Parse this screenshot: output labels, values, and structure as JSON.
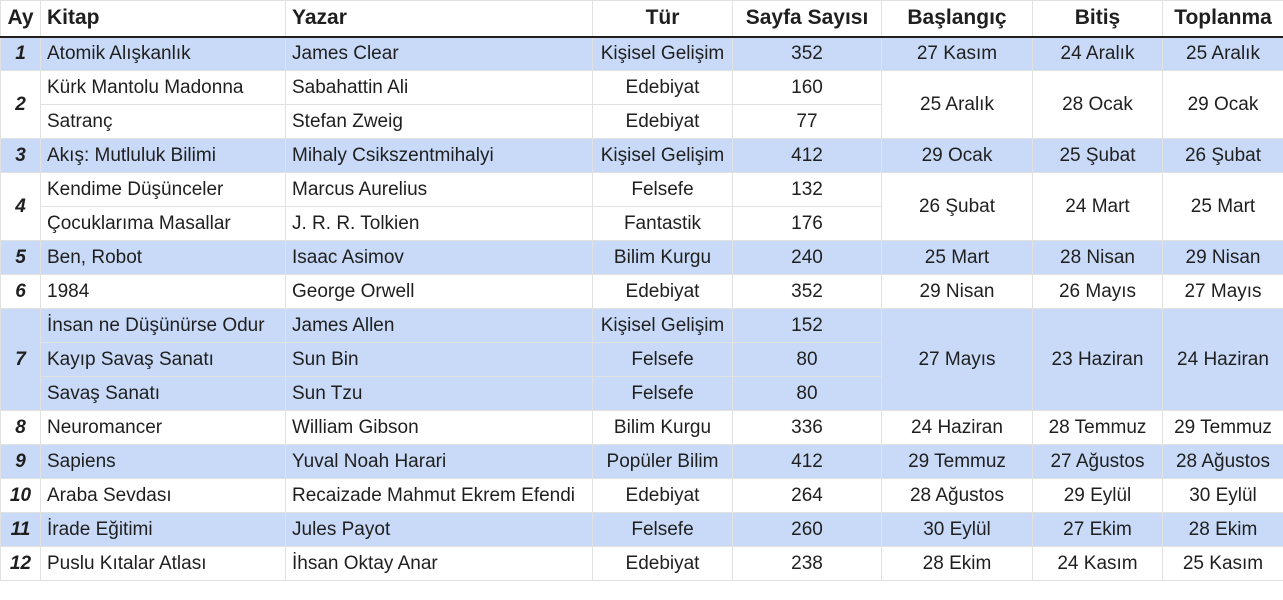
{
  "headers": {
    "ay": "Ay",
    "kitap": "Kitap",
    "yazar": "Yazar",
    "tur": "Tür",
    "sayfa": "Sayfa Sayısı",
    "baslangic": "Başlangıç",
    "bitis": "Bitiş",
    "toplanma": "Toplanma"
  },
  "months": [
    {
      "ay": "1",
      "baslangic": "27 Kasım",
      "bitis": "24 Aralık",
      "toplanma": "25 Aralık",
      "books": [
        {
          "kitap": "Atomik Alışkanlık",
          "yazar": "James Clear",
          "tur": "Kişisel Gelişim",
          "sayfa": "352"
        }
      ]
    },
    {
      "ay": "2",
      "baslangic": "25 Aralık",
      "bitis": "28 Ocak",
      "toplanma": "29 Ocak",
      "books": [
        {
          "kitap": "Kürk Mantolu Madonna",
          "yazar": "Sabahattin Ali",
          "tur": "Edebiyat",
          "sayfa": "160"
        },
        {
          "kitap": "Satranç",
          "yazar": "Stefan Zweig",
          "tur": "Edebiyat",
          "sayfa": "77"
        }
      ]
    },
    {
      "ay": "3",
      "baslangic": "29 Ocak",
      "bitis": "25 Şubat",
      "toplanma": "26 Şubat",
      "books": [
        {
          "kitap": "Akış: Mutluluk Bilimi",
          "yazar": "Mihaly Csikszentmihalyi",
          "tur": "Kişisel Gelişim",
          "sayfa": "412"
        }
      ]
    },
    {
      "ay": "4",
      "baslangic": "26 Şubat",
      "bitis": "24 Mart",
      "toplanma": "25 Mart",
      "books": [
        {
          "kitap": "Kendime Düşünceler",
          "yazar": "Marcus Aurelius",
          "tur": "Felsefe",
          "sayfa": "132"
        },
        {
          "kitap": "Çocuklarıma Masallar",
          "yazar": "J. R. R. Tolkien",
          "tur": "Fantastik",
          "sayfa": "176"
        }
      ]
    },
    {
      "ay": "5",
      "baslangic": "25 Mart",
      "bitis": "28 Nisan",
      "toplanma": "29 Nisan",
      "books": [
        {
          "kitap": "Ben, Robot",
          "yazar": "Isaac Asimov",
          "tur": "Bilim Kurgu",
          "sayfa": "240"
        }
      ]
    },
    {
      "ay": "6",
      "baslangic": "29 Nisan",
      "bitis": "26 Mayıs",
      "toplanma": "27 Mayıs",
      "books": [
        {
          "kitap": "1984",
          "yazar": "George Orwell",
          "tur": "Edebiyat",
          "sayfa": "352"
        }
      ]
    },
    {
      "ay": "7",
      "baslangic": "27 Mayıs",
      "bitis": "23 Haziran",
      "toplanma": "24 Haziran",
      "books": [
        {
          "kitap": "İnsan ne Düşünürse Odur",
          "yazar": "James Allen",
          "tur": "Kişisel Gelişim",
          "sayfa": "152"
        },
        {
          "kitap": "Kayıp Savaş Sanatı",
          "yazar": "Sun Bin",
          "tur": "Felsefe",
          "sayfa": "80"
        },
        {
          "kitap": "Savaş Sanatı",
          "yazar": "Sun Tzu",
          "tur": "Felsefe",
          "sayfa": "80"
        }
      ]
    },
    {
      "ay": "8",
      "baslangic": "24 Haziran",
      "bitis": "28 Temmuz",
      "toplanma": "29 Temmuz",
      "books": [
        {
          "kitap": "Neuromancer",
          "yazar": "William Gibson",
          "tur": "Bilim Kurgu",
          "sayfa": "336"
        }
      ]
    },
    {
      "ay": "9",
      "baslangic": "29 Temmuz",
      "bitis": "27 Ağustos",
      "toplanma": "28 Ağustos",
      "books": [
        {
          "kitap": "Sapiens",
          "yazar": "Yuval Noah Harari",
          "tur": "Popüler Bilim",
          "sayfa": "412"
        }
      ]
    },
    {
      "ay": "10",
      "baslangic": "28 Ağustos",
      "bitis": "29 Eylül",
      "toplanma": "30 Eylül",
      "books": [
        {
          "kitap": "Araba Sevdası",
          "yazar": "Recaizade Mahmut Ekrem Efendi",
          "tur": "Edebiyat",
          "sayfa": "264"
        }
      ]
    },
    {
      "ay": "11",
      "baslangic": "30 Eylül",
      "bitis": "27 Ekim",
      "toplanma": "28 Ekim",
      "books": [
        {
          "kitap": "İrade Eğitimi",
          "yazar": "Jules Payot",
          "tur": "Felsefe",
          "sayfa": "260"
        }
      ]
    },
    {
      "ay": "12",
      "baslangic": "28 Ekim",
      "bitis": "24 Kasım",
      "toplanma": "25 Kasım",
      "books": [
        {
          "kitap": "Puslu Kıtalar Atlası",
          "yazar": "İhsan Oktay Anar",
          "tur": "Edebiyat",
          "sayfa": "238"
        }
      ]
    }
  ],
  "colors": {
    "highlight": "#c9daf8",
    "grid": "#e2e2e2"
  }
}
